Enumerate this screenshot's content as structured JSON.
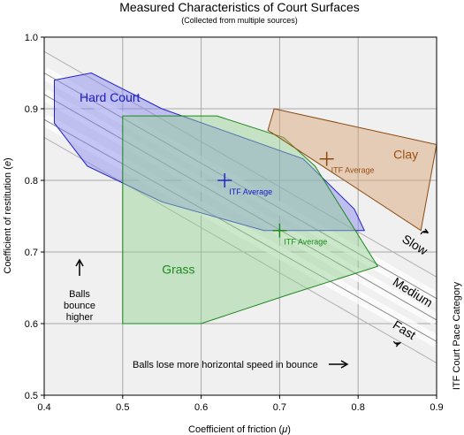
{
  "chart_data": {
    "type": "area",
    "title": "Measured Characteristics of Court Surfaces",
    "subtitle": "(Collected from multiple sources)",
    "xlabel_main": "Coefficient of friction (",
    "xlabel_symbol": "μ",
    "xlabel_end": ")",
    "ylabel_main": "Coefficient of restitution (",
    "ylabel_symbol": "e",
    "ylabel_end": ")",
    "right_label": "ITF Court Pace Category",
    "xlim": [
      0.4,
      0.9
    ],
    "ylim": [
      0.5,
      1.0
    ],
    "x_ticks": [
      "0.4",
      "0.5",
      "0.6",
      "0.7",
      "0.8",
      "0.9"
    ],
    "y_ticks": [
      "0.5",
      "0.6",
      "0.7",
      "0.8",
      "0.9",
      "1.0"
    ],
    "grid": true,
    "surfaces": [
      {
        "name": "Hard Court",
        "fill": "#8080ee",
        "stroke": "#2222cc",
        "text_color": "#1a1acc",
        "label_pos": [
          0.445,
          0.91
        ],
        "polygon": [
          [
            0.413,
            0.94
          ],
          [
            0.46,
            0.95
          ],
          [
            0.55,
            0.9
          ],
          [
            0.73,
            0.83
          ],
          [
            0.795,
            0.76
          ],
          [
            0.808,
            0.73
          ],
          [
            0.68,
            0.73
          ],
          [
            0.55,
            0.77
          ],
          [
            0.455,
            0.82
          ],
          [
            0.413,
            0.88
          ]
        ],
        "average": [
          0.63,
          0.8
        ],
        "average_label": "ITF Average"
      },
      {
        "name": "Grass",
        "fill": "#90d090",
        "stroke": "#1e8a1e",
        "text_color": "#1e8a1e",
        "label_pos": [
          0.55,
          0.67
        ],
        "polygon": [
          [
            0.5,
            0.89
          ],
          [
            0.62,
            0.89
          ],
          [
            0.705,
            0.86
          ],
          [
            0.745,
            0.82
          ],
          [
            0.825,
            0.68
          ],
          [
            0.71,
            0.64
          ],
          [
            0.6,
            0.6
          ],
          [
            0.5,
            0.6
          ]
        ],
        "average": [
          0.7,
          0.73
        ],
        "average_label": "ITF Average"
      },
      {
        "name": "Clay",
        "fill": "#d4a070",
        "stroke": "#8b4a10",
        "text_color": "#9a5010",
        "label_pos": [
          0.845,
          0.83
        ],
        "polygon": [
          [
            0.693,
            0.9
          ],
          [
            0.9,
            0.85
          ],
          [
            0.88,
            0.73
          ],
          [
            0.685,
            0.87
          ]
        ],
        "average": [
          0.76,
          0.83
        ],
        "average_label": "ITF Average"
      }
    ],
    "pace_categories": [
      {
        "name": "Slow",
        "label_pos": [
          0.855,
          0.715
        ],
        "arrow": "up"
      },
      {
        "name": "Medium",
        "label_pos": [
          0.843,
          0.655
        ],
        "arrow": "none"
      },
      {
        "name": "Fast",
        "label_pos": [
          0.843,
          0.595
        ],
        "arrow": "down"
      }
    ],
    "annotations": {
      "bounce_higher": [
        "Balls",
        "bounce",
        "higher"
      ],
      "horizontal_speed": "Balls lose more horizontal speed in bounce"
    }
  }
}
